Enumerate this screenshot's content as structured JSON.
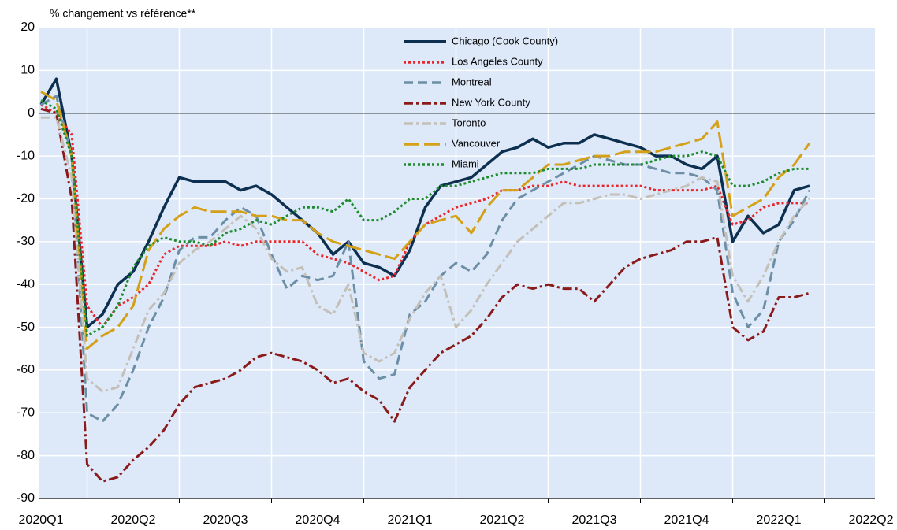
{
  "chart_data": {
    "type": "line",
    "y_axis_label": "% changement vs référence**",
    "categories": [
      "2020Q1",
      null,
      null,
      null,
      null,
      null,
      "2020Q2",
      null,
      null,
      null,
      null,
      null,
      "2020Q3",
      null,
      null,
      null,
      null,
      null,
      "2020Q4",
      null,
      null,
      null,
      null,
      null,
      "2021Q1",
      null,
      null,
      null,
      null,
      null,
      "2021Q2",
      null,
      null,
      null,
      null,
      null,
      "2021Q3",
      null,
      null,
      null,
      null,
      null,
      "2021Q4",
      null,
      null,
      null,
      null,
      null,
      "2022Q1",
      null,
      null,
      null,
      null,
      null,
      "2022Q2"
    ],
    "ylim": [
      -90,
      20
    ],
    "yticks": [
      -90,
      -80,
      -70,
      -60,
      -50,
      -40,
      -30,
      -20,
      -10,
      0,
      10,
      20
    ],
    "grid": true,
    "legend": "top-center",
    "series": [
      {
        "name": "Chicago (Cook County)",
        "color": "#0d3050",
        "line_style": "solid",
        "values": [
          2,
          8,
          -10,
          -50,
          -47,
          -40,
          -37,
          -30,
          -22,
          -15,
          -16,
          -16,
          -16,
          -18,
          -17,
          -19,
          -22,
          -25,
          -28,
          -33,
          -30,
          -35,
          -36,
          -38,
          -32,
          -22,
          -17,
          -16,
          -15,
          -12,
          -9,
          -8,
          -6,
          -8,
          -7,
          -7,
          -5,
          -6,
          -7,
          -8,
          -10,
          -10,
          -12,
          -13,
          -10,
          -30,
          -24,
          -28,
          -26,
          -18,
          -17,
          null,
          null,
          null,
          null
        ]
      },
      {
        "name": "Los Angeles County",
        "color": "#e8262c",
        "line_style": "dot",
        "values": [
          2,
          0,
          -5,
          -45,
          -50,
          -45,
          -43,
          -40,
          -33,
          -31,
          -31,
          -31,
          -30,
          -31,
          -30,
          -30,
          -30,
          -30,
          -33,
          -34,
          -35,
          -37,
          -39,
          -38,
          -30,
          -26,
          -24,
          -22,
          -21,
          -20,
          -18,
          -18,
          -17,
          -17,
          -16,
          -17,
          -17,
          -17,
          -17,
          -17,
          -18,
          -18,
          -18,
          -18,
          -17,
          -26,
          -25,
          -22,
          -21,
          -21,
          -21,
          null,
          null,
          null,
          null
        ]
      },
      {
        "name": "Montreal",
        "color": "#6d8fa6",
        "line_style": "dash",
        "values": [
          2,
          4,
          -10,
          -70,
          -72,
          -68,
          -60,
          -50,
          -43,
          -32,
          -29,
          -29,
          -25,
          -22,
          -24,
          -33,
          -41,
          -38,
          -39,
          -38,
          -30,
          -58,
          -62,
          -61,
          -47,
          -44,
          -38,
          -35,
          -37,
          -33,
          -25,
          -20,
          -18,
          -16,
          -14,
          -12,
          -10,
          -11,
          -12,
          -12,
          -13,
          -14,
          -14,
          -15,
          -18,
          -42,
          -50,
          -46,
          -30,
          -25,
          -18,
          null,
          null,
          null,
          null
        ]
      },
      {
        "name": "New York County",
        "color": "#8b1a1a",
        "line_style": "dashdot",
        "values": [
          1,
          0,
          -20,
          -82,
          -86,
          -85,
          -81,
          -78,
          -74,
          -68,
          -64,
          -63,
          -62,
          -60,
          -57,
          -56,
          -57,
          -58,
          -60,
          -63,
          -62,
          -65,
          -67,
          -72,
          -64,
          -60,
          -56,
          -54,
          -52,
          -48,
          -43,
          -40,
          -41,
          -40,
          -41,
          -41,
          -44,
          -40,
          -36,
          -34,
          -33,
          -32,
          -30,
          -30,
          -29,
          -50,
          -53,
          -51,
          -43,
          -43,
          -42,
          null,
          null,
          null,
          null
        ]
      },
      {
        "name": "Toronto",
        "color": "#c4c0b8",
        "line_style": "dashdot",
        "values": [
          -1,
          -1,
          -15,
          -62,
          -65,
          -64,
          -55,
          -46,
          -42,
          -35,
          -32,
          -30,
          -27,
          -24,
          -27,
          -34,
          -37,
          -36,
          -45,
          -47,
          -40,
          -56,
          -58,
          -56,
          -48,
          -42,
          -38,
          -50,
          -46,
          -40,
          -35,
          -30,
          -27,
          -24,
          -21,
          -21,
          -20,
          -19,
          -19,
          -20,
          -19,
          -18,
          -17,
          -15,
          -16,
          -38,
          -44,
          -38,
          -30,
          -24,
          -20,
          null,
          null,
          null,
          null
        ]
      },
      {
        "name": "Vancouver",
        "color": "#d4a017",
        "line_style": "longdash",
        "values": [
          5,
          3,
          -10,
          -55,
          -52,
          -50,
          -45,
          -32,
          -27,
          -24,
          -22,
          -23,
          -23,
          -23,
          -24,
          -24,
          -25,
          -25,
          -28,
          -30,
          -31,
          -32,
          -33,
          -34,
          -30,
          -26,
          -25,
          -24,
          -28,
          -22,
          -18,
          -18,
          -15,
          -12,
          -12,
          -11,
          -10,
          -10,
          -9,
          -9,
          -9,
          -8,
          -7,
          -6,
          -2,
          -24,
          -22,
          -20,
          -15,
          -12,
          -7,
          null,
          null,
          null,
          null
        ]
      },
      {
        "name": "Miami",
        "color": "#1e8c2e",
        "line_style": "dot",
        "values": [
          3,
          1,
          -10,
          -52,
          -50,
          -45,
          -36,
          -31,
          -29,
          -30,
          -30,
          -31,
          -28,
          -27,
          -25,
          -26,
          -24,
          -22,
          -22,
          -23,
          -20,
          -25,
          -25,
          -23,
          -20,
          -20,
          -17,
          -17,
          -16,
          -15,
          -14,
          -14,
          -14,
          -13,
          -13,
          -13,
          -12,
          -12,
          -12,
          -12,
          -11,
          -10,
          -10,
          -9,
          -10,
          -17,
          -17,
          -16,
          -14,
          -13,
          -13,
          null,
          null,
          null,
          null
        ]
      }
    ]
  }
}
